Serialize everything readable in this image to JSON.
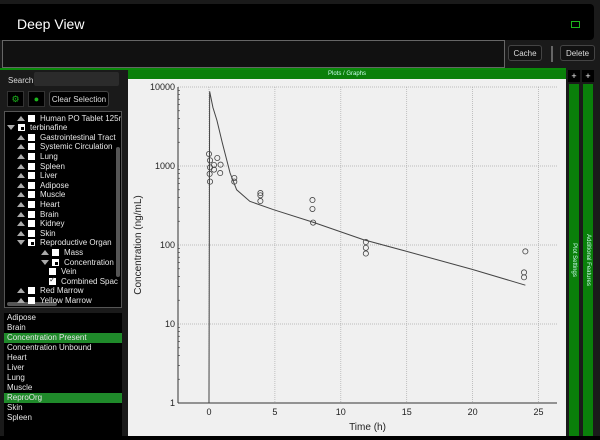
{
  "app": {
    "title": "Deep View",
    "popout_icon": "popout-icon"
  },
  "toolbar": {
    "cache_label": "Cache",
    "delete_label": "Delete",
    "command_value": ""
  },
  "sidebar": {
    "search_label": "Search",
    "search_value": "",
    "add_icon": "add-green-icon",
    "remove_icon": "toggle-green-icon",
    "clear_label": "Clear Selection",
    "tree": [
      {
        "label": "Human PO Tablet 125n",
        "level": 1,
        "arrow": "up",
        "check": "empty"
      },
      {
        "label": "terbinafine",
        "level": 0,
        "arrow": "down",
        "check": "partial"
      },
      {
        "label": "Gastrointestinal Tract",
        "level": 1,
        "arrow": "up",
        "check": "empty"
      },
      {
        "label": "Systemic Circulation",
        "level": 1,
        "arrow": "up",
        "check": "empty"
      },
      {
        "label": "Lung",
        "level": 1,
        "arrow": "up",
        "check": "empty"
      },
      {
        "label": "Spleen",
        "level": 1,
        "arrow": "up",
        "check": "empty"
      },
      {
        "label": "Liver",
        "level": 1,
        "arrow": "up",
        "check": "empty"
      },
      {
        "label": "Adipose",
        "level": 1,
        "arrow": "up",
        "check": "empty"
      },
      {
        "label": "Muscle",
        "level": 1,
        "arrow": "up",
        "check": "empty"
      },
      {
        "label": "Heart",
        "level": 1,
        "arrow": "up",
        "check": "empty"
      },
      {
        "label": "Brain",
        "level": 1,
        "arrow": "up",
        "check": "empty"
      },
      {
        "label": "Kidney",
        "level": 1,
        "arrow": "up",
        "check": "empty"
      },
      {
        "label": "Skin",
        "level": 1,
        "arrow": "up",
        "check": "empty"
      },
      {
        "label": "Reproductive Organ",
        "level": 1,
        "arrow": "down",
        "check": "partial"
      },
      {
        "label": "Mass",
        "level": 2,
        "arrow": "up",
        "check": "empty"
      },
      {
        "label": "Concentration",
        "level": 2,
        "arrow": "down",
        "check": "partial"
      },
      {
        "label": "Vein",
        "level": 3,
        "arrow": "none",
        "check": "empty"
      },
      {
        "label": "Combined Spac",
        "level": 3,
        "arrow": "none",
        "check": "checked"
      },
      {
        "label": "Red Marrow",
        "level": 1,
        "arrow": "up",
        "check": "empty"
      },
      {
        "label": "Yellow Marrow",
        "level": 1,
        "arrow": "up",
        "check": "empty"
      }
    ],
    "list": [
      {
        "label": "Adipose",
        "selected": false
      },
      {
        "label": "Brain",
        "selected": false
      },
      {
        "label": "Concentration Present",
        "selected": true
      },
      {
        "label": "Concentration Unbound",
        "selected": false
      },
      {
        "label": "Heart",
        "selected": false
      },
      {
        "label": "Liver",
        "selected": false
      },
      {
        "label": "Lung",
        "selected": false
      },
      {
        "label": "Muscle",
        "selected": false
      },
      {
        "label": "ReproOrg",
        "selected": true
      },
      {
        "label": "Skin",
        "selected": false
      },
      {
        "label": "Spleen",
        "selected": false
      }
    ]
  },
  "plot_panel": {
    "header": "Plots / Graphs",
    "plus": "+",
    "plot_settings": "Plot Settings",
    "additional_features": "Additional Features"
  },
  "colors": {
    "accent": "#0a7f0a",
    "selection": "#1f8a2a",
    "plot_bg": "#f0f0f0"
  },
  "chart_data": {
    "type": "scatter",
    "xlabel": "Time (h)",
    "ylabel": "Concentration (ng/mL)",
    "xlim": [
      -2.35,
      26.4
    ],
    "ylim": [
      1,
      10000
    ],
    "yscale": "log",
    "grid": true,
    "xticks": [
      0,
      5,
      10,
      15,
      20,
      25
    ],
    "yticks": [
      1,
      10,
      100,
      1000,
      10000
    ],
    "observed": {
      "x": [
        0,
        0.08,
        0.08,
        0.05,
        0.08,
        0.38,
        0.38,
        0.63,
        0.88,
        0.85,
        1.92,
        1.92,
        3.9,
        3.9,
        3.9,
        7.85,
        7.85,
        7.9,
        11.9,
        11.9,
        11.9,
        24,
        23.9,
        23.9
      ],
      "y": [
        1419,
        1180,
        962,
        794,
        634,
        1030,
        900,
        1263,
        1040,
        815,
        705,
        634,
        455,
        425,
        360,
        371,
        286,
        192,
        109,
        92,
        78,
        83,
        45,
        39
      ]
    },
    "simulated": {
      "x": [
        0,
        0.05,
        0.3,
        0.6,
        1,
        1.6,
        2.1,
        3.1,
        4.9,
        7.9,
        11.7,
        15,
        20,
        24
      ],
      "y": [
        1,
        8800,
        5500,
        3800,
        2000,
        815,
        500,
        357,
        280,
        194,
        117,
        83,
        49,
        31
      ]
    }
  }
}
